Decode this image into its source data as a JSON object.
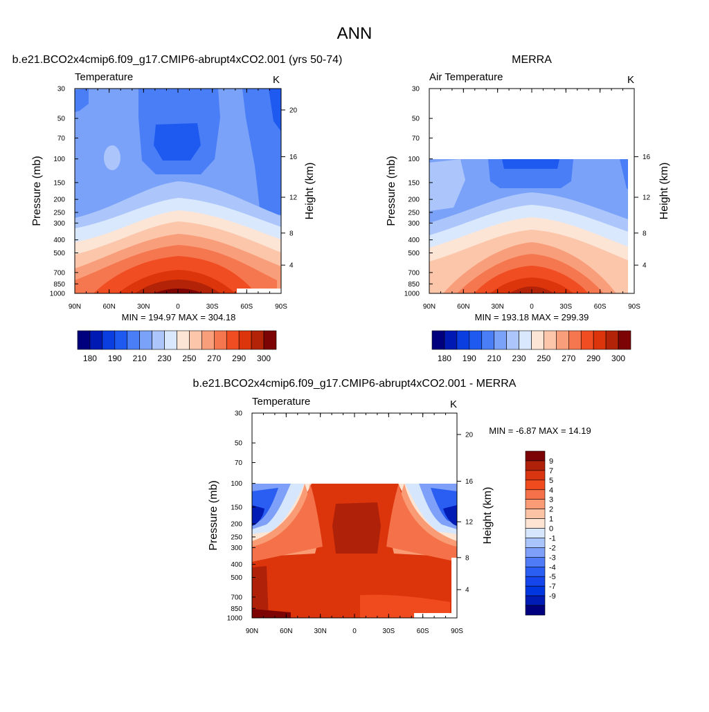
{
  "figure_title": "ANN",
  "colors": {
    "abs_scale": [
      "#00007f",
      "#0019b3",
      "#0a3ee0",
      "#1e5af0",
      "#4a7ef6",
      "#7ba2f9",
      "#acc6fb",
      "#d9e8fd",
      "#fde5d6",
      "#fcc6ab",
      "#f99e7b",
      "#f5774f",
      "#f14d23",
      "#dc350c",
      "#b22308",
      "#7d0404"
    ],
    "diff_scale": [
      "#00007f",
      "#001cb5",
      "#0036e0",
      "#1446ec",
      "#2a5ef2",
      "#4f7cf6",
      "#7ea0f8",
      "#aac5fb",
      "#d5e6fd",
      "#fde4d3",
      "#fcc3a5",
      "#f99c75",
      "#f47149",
      "#f04b1f",
      "#d93510",
      "#b0210a",
      "#7d0404"
    ]
  },
  "chart_data": [
    {
      "type": "heatmap",
      "title": "b.e21.BCO2x4cmip6.f09_g17.CMIP6-abrupt4xCO2.001 (yrs 50-74)",
      "left_label": "Temperature",
      "right_label": "K",
      "xlabel": "",
      "ylabel": "Pressure (mb)",
      "y2label": "Height (km)",
      "x_ticks": [
        "90N",
        "60N",
        "30N",
        "0",
        "30S",
        "60S",
        "90S"
      ],
      "y_ticks": [
        "30",
        "50",
        "70",
        "100",
        "150",
        "200",
        "250",
        "300",
        "400",
        "500",
        "700",
        "850",
        "1000"
      ],
      "y2_ticks": [
        "20",
        "16",
        "12",
        "8",
        "4"
      ],
      "ylim": [
        30,
        1000
      ],
      "y_scale": "log",
      "min": 194.97,
      "max": 304.18,
      "stats": "MIN = 194.97  MAX = 304.18",
      "levels": [
        180,
        185,
        190,
        200,
        210,
        220,
        230,
        240,
        250,
        260,
        270,
        280,
        290,
        295,
        300
      ],
      "colorbar_labels": [
        "180",
        "190",
        "210",
        "230",
        "250",
        "270",
        "290",
        "300"
      ],
      "colorbar_position": "bottom"
    },
    {
      "type": "heatmap",
      "title": "MERRA",
      "left_label": "Air Temperature",
      "right_label": "K",
      "xlabel": "",
      "ylabel": "Pressure (mb)",
      "y2label": "Height (km)",
      "x_ticks": [
        "90N",
        "60N",
        "30N",
        "0",
        "30S",
        "60S",
        "90S"
      ],
      "y_ticks": [
        "30",
        "50",
        "70",
        "100",
        "150",
        "200",
        "250",
        "300",
        "400",
        "500",
        "700",
        "850",
        "1000"
      ],
      "y2_ticks": [
        "16",
        "12",
        "8",
        "4"
      ],
      "ylim": [
        30,
        1000
      ],
      "y_scale": "log",
      "data_top_pressure": 100,
      "min": 193.18,
      "max": 299.39,
      "stats": "MIN = 193.18  MAX = 299.39",
      "levels": [
        180,
        185,
        190,
        200,
        210,
        220,
        230,
        240,
        250,
        260,
        270,
        280,
        290,
        295,
        300
      ],
      "colorbar_labels": [
        "180",
        "190",
        "210",
        "230",
        "250",
        "270",
        "290",
        "300"
      ],
      "colorbar_position": "bottom"
    },
    {
      "type": "heatmap",
      "title": "b.e21.BCO2x4cmip6.f09_g17.CMIP6-abrupt4xCO2.001 - MERRA",
      "left_label": "Temperature",
      "right_label": "K",
      "xlabel": "",
      "ylabel": "Pressure (mb)",
      "y2label": "Height (km)",
      "x_ticks": [
        "90N",
        "60N",
        "30N",
        "0",
        "30S",
        "60S",
        "90S"
      ],
      "y_ticks": [
        "30",
        "50",
        "70",
        "100",
        "150",
        "200",
        "250",
        "300",
        "400",
        "500",
        "700",
        "850",
        "1000"
      ],
      "y2_ticks": [
        "20",
        "16",
        "12",
        "8",
        "4"
      ],
      "ylim": [
        30,
        1000
      ],
      "y_scale": "log",
      "data_top_pressure": 100,
      "min": -6.87,
      "max": 14.19,
      "stats": "MIN =  -6.87  MAX =  14.19",
      "levels": [
        -9,
        -7,
        -6,
        -5,
        -4,
        -3,
        -2,
        -1,
        0,
        1,
        2,
        3,
        4,
        5,
        7,
        9
      ],
      "colorbar_labels": [
        "9",
        "7",
        "5",
        "4",
        "3",
        "2",
        "1",
        "0",
        "-1",
        "-2",
        "-3",
        "-4",
        "-5",
        "-7",
        "-9"
      ],
      "colorbar_position": "right"
    }
  ]
}
